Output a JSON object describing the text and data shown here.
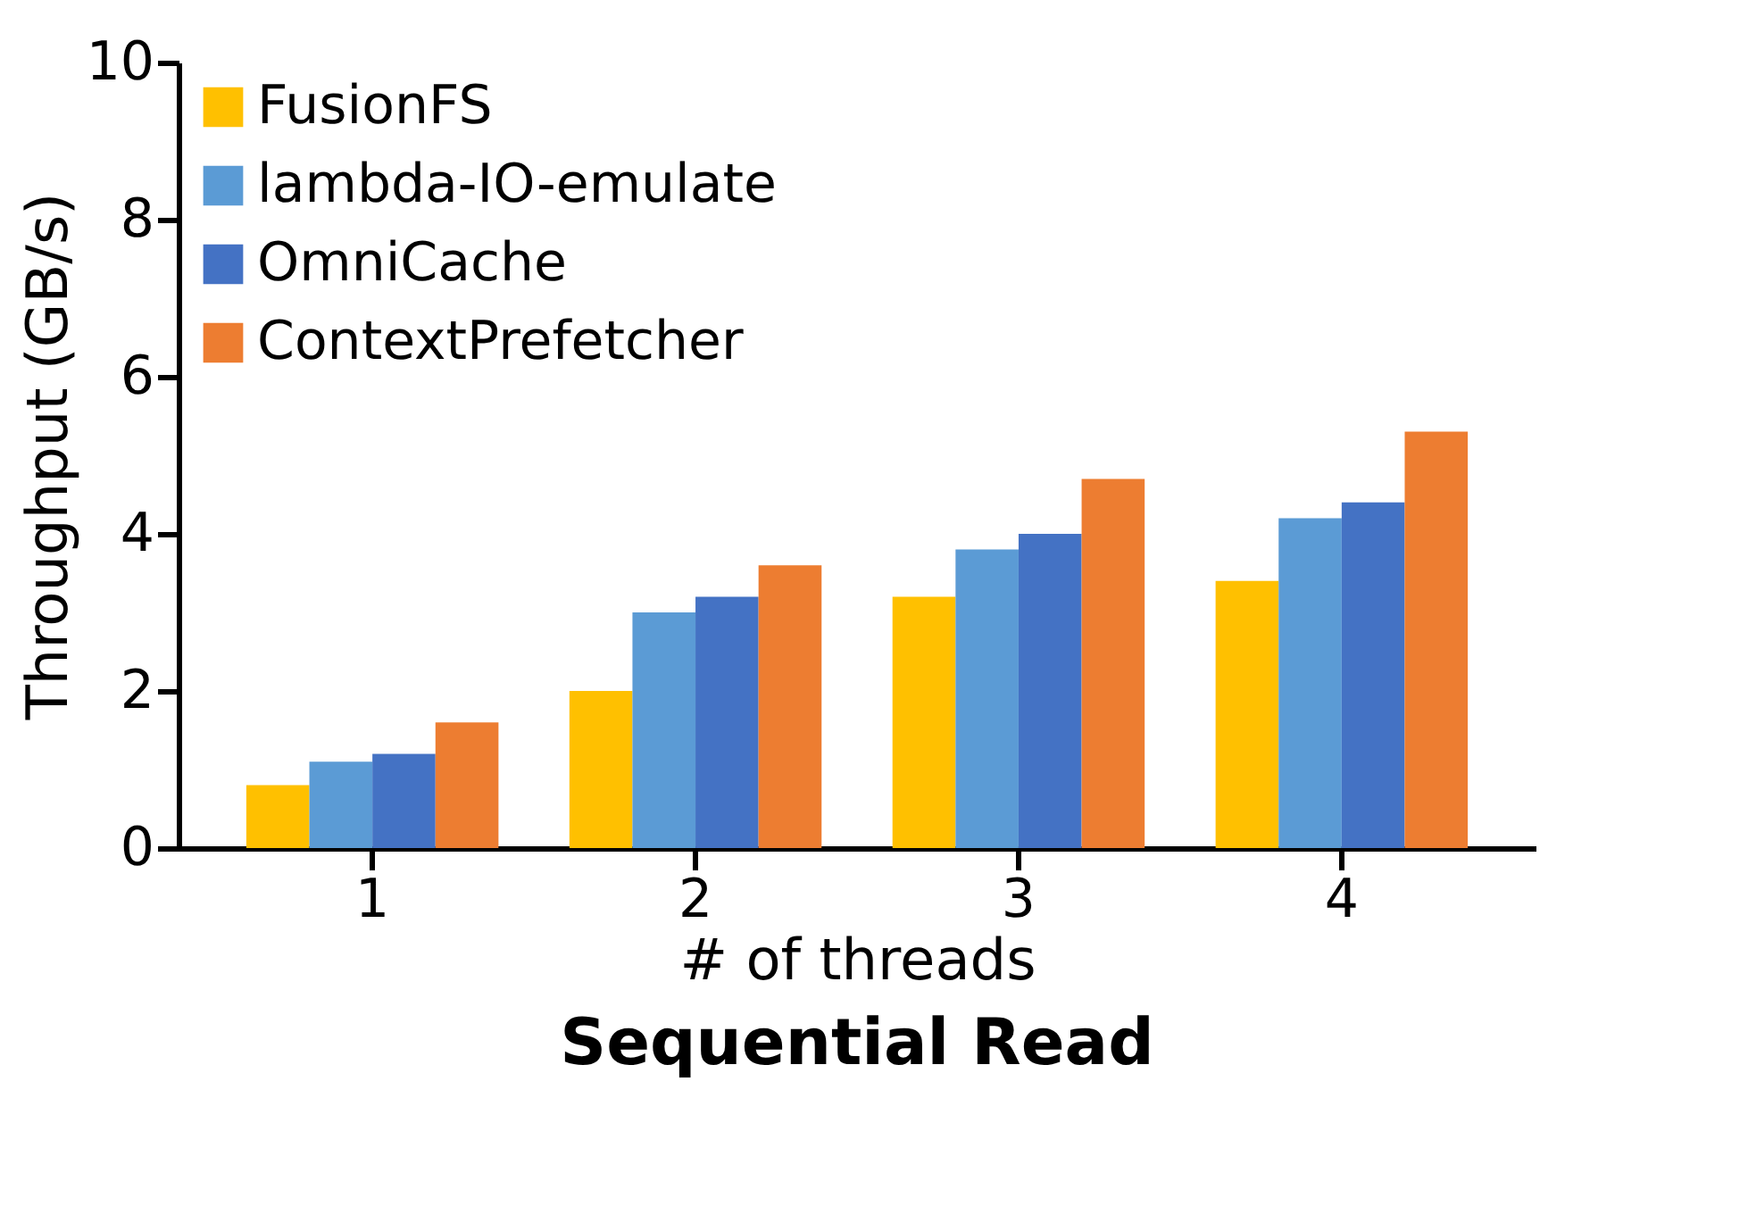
{
  "chart_data": {
    "type": "bar",
    "title": "Sequential Read",
    "xlabel": "# of threads",
    "ylabel": "Throughput (GB/s)",
    "categories": [
      "1",
      "2",
      "3",
      "4"
    ],
    "series": [
      {
        "name": "FusionFS",
        "color": "#ffc000",
        "values": [
          0.8,
          2.0,
          3.2,
          3.4
        ]
      },
      {
        "name": "lambda-IO-emulate",
        "color": "#5b9bd5",
        "values": [
          1.1,
          3.0,
          3.8,
          4.2
        ]
      },
      {
        "name": "OmniCache",
        "color": "#4472c4",
        "values": [
          1.2,
          3.2,
          4.0,
          4.4
        ]
      },
      {
        "name": "ContextPrefetcher",
        "color": "#ed7d31",
        "values": [
          1.6,
          3.6,
          4.7,
          5.3
        ]
      }
    ],
    "ylim": [
      0,
      10
    ],
    "yticks": [
      0,
      2,
      4,
      6,
      8,
      10
    ],
    "grid": false,
    "legend": "top left"
  }
}
